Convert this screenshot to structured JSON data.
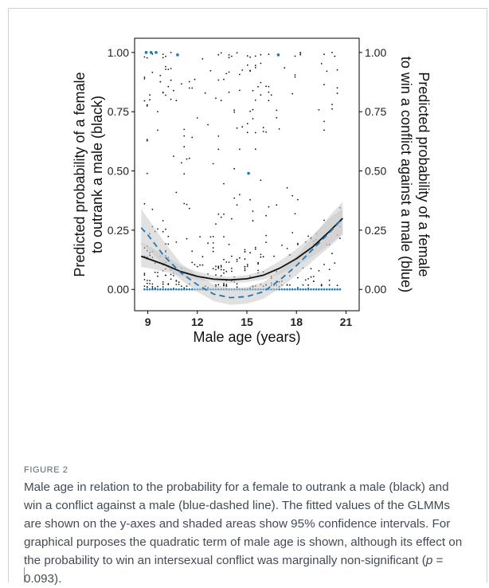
{
  "figure": {
    "label": "FIGURE 2",
    "caption_main": "Male age in relation to the probability for a female to outrank a male (black) and win a conflict against a male (blue-dashed line). The fitted values of the GLMMs are shown on the y-axes and shaded areas show 95% confidence intervals. For graphical purposes the quadratic term of male age is shown, although its effect on the probability to win an intersexual conflict was marginally non-significant (",
    "caption_p": "p",
    "caption_end": " = 0.093)."
  },
  "chart_data": {
    "type": "scatter",
    "xlabel": "Male age (years)",
    "ylabel_left_line1": "Predicted probability of a female",
    "ylabel_left_line2": "to outrank a male (black)",
    "ylabel_right_line1": "Predicted probability of a female",
    "ylabel_right_line2": "to win a conflict against a male (blue)",
    "xlim": [
      8.2,
      21.8
    ],
    "ylim": [
      -0.09,
      1.06
    ],
    "x_ticks": [
      9,
      12,
      15,
      18,
      21
    ],
    "x_tick_labels": [
      "9",
      "12",
      "15",
      "18",
      "21"
    ],
    "y_ticks": [
      0,
      0.25,
      0.5,
      0.75,
      1
    ],
    "y_tick_labels": [
      "0.00",
      "0.25",
      "0.50",
      "0.75",
      "1.00"
    ],
    "colors": {
      "black_series": "#111111",
      "blue_series": "#1f77b4",
      "ci_band": "#c9c9c9"
    },
    "series": [
      {
        "name": "outrank a male (black)",
        "style": "solid",
        "x": [
          8.6,
          9,
          10,
          11,
          12,
          13,
          14,
          15,
          16,
          17,
          18,
          19,
          20,
          20.8
        ],
        "fit": [
          0.14,
          0.13,
          0.105,
          0.075,
          0.055,
          0.043,
          0.04,
          0.045,
          0.06,
          0.09,
          0.13,
          0.18,
          0.245,
          0.3
        ],
        "lower": [
          0.095,
          0.09,
          0.075,
          0.055,
          0.04,
          0.03,
          0.027,
          0.03,
          0.042,
          0.065,
          0.1,
          0.14,
          0.19,
          0.235
        ],
        "upper": [
          0.2,
          0.185,
          0.145,
          0.1,
          0.075,
          0.058,
          0.053,
          0.06,
          0.08,
          0.12,
          0.17,
          0.23,
          0.3,
          0.34
        ]
      },
      {
        "name": "win a conflict against a male (blue)",
        "style": "dashed",
        "x": [
          8.6,
          9,
          10,
          11,
          12,
          13,
          14,
          15,
          16,
          17,
          18,
          19,
          20,
          20.8
        ],
        "fit": [
          0.26,
          0.23,
          0.14,
          0.07,
          0.02,
          -0.02,
          -0.035,
          -0.03,
          -0.01,
          0.04,
          0.1,
          0.17,
          0.24,
          0.3
        ],
        "lower": [
          0.19,
          0.17,
          0.1,
          0.04,
          -0.01,
          -0.05,
          -0.065,
          -0.06,
          -0.04,
          0.005,
          0.06,
          0.12,
          0.18,
          0.23
        ],
        "upper": [
          0.34,
          0.3,
          0.2,
          0.11,
          0.06,
          0.02,
          0.005,
          0.01,
          0.03,
          0.08,
          0.14,
          0.22,
          0.31,
          0.37
        ]
      }
    ]
  }
}
